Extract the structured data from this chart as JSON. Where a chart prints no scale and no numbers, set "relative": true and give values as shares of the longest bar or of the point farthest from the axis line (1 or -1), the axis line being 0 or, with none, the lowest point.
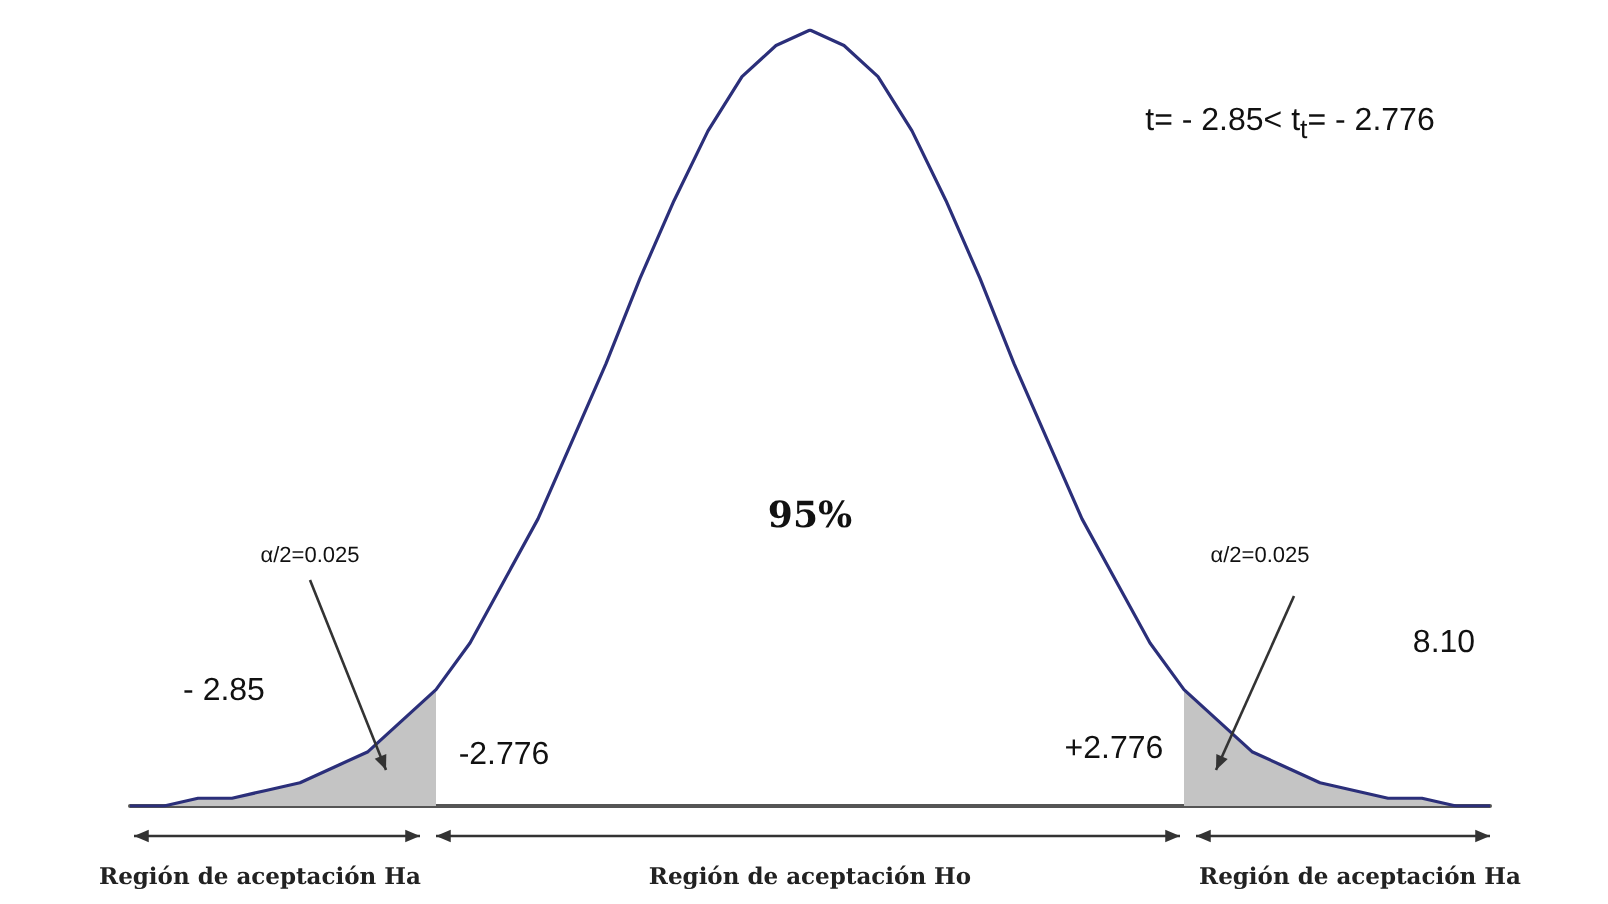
{
  "chart_data": {
    "type": "line",
    "relative": true,
    "grid": false,
    "marker": "none",
    "categories": [
      null,
      null,
      null,
      null,
      null,
      null,
      null,
      null,
      null,
      null,
      null,
      null,
      null,
      null,
      null,
      null,
      null,
      null,
      null,
      null,
      null,
      null,
      null,
      null,
      null,
      null,
      null,
      null,
      null,
      null,
      null,
      null,
      null,
      null,
      null,
      null,
      null,
      null,
      null,
      null,
      null
    ],
    "series": [
      {
        "color": "#2b2f7a",
        "values": [
          0,
          0,
          0.01,
          0.01,
          0.02,
          0.03,
          0.05,
          0.07,
          0.11,
          0.15,
          0.21,
          0.29,
          0.37,
          0.47,
          0.57,
          0.68,
          0.78,
          0.87,
          0.94,
          0.98,
          1,
          0.98,
          0.94,
          0.87,
          0.78,
          0.68,
          0.57,
          0.47,
          0.37,
          0.29,
          0.21,
          0.15,
          0.11,
          0.07,
          0.05,
          0.03,
          0.02,
          0.01,
          0.01,
          0,
          0
        ]
      },
      {
        "type": "area",
        "color": "#c4c4c4",
        "values": [
          0,
          0,
          0.01,
          0.01,
          0.02,
          0.03,
          0.05,
          0.07,
          0.11,
          0.15,
          null,
          null,
          null,
          null,
          null,
          null,
          null,
          null,
          null,
          null,
          null,
          null,
          null,
          null,
          null,
          null,
          null,
          null,
          null,
          null,
          null,
          null,
          null,
          null,
          null,
          null,
          null,
          null,
          null,
          null,
          null
        ]
      },
      {
        "type": "area",
        "color": "#c4c4c4",
        "values": [
          null,
          null,
          null,
          null,
          null,
          null,
          null,
          null,
          null,
          null,
          null,
          null,
          null,
          null,
          null,
          null,
          null,
          null,
          null,
          null,
          null,
          null,
          null,
          null,
          null,
          null,
          null,
          null,
          null,
          null,
          null,
          0.15,
          0.11,
          0.07,
          0.05,
          0.03,
          0.02,
          0.01,
          0.01,
          0,
          0
        ]
      }
    ],
    "annotations": [
      "t= - 2.85< t$_{t}$= - 2.776",
      "95%",
      "α/2=0.025",
      "α/2=0.025",
      "- 2.85",
      "-2.776",
      "+2.776",
      "8.10",
      "Región de aceptación Ha",
      "Región de aceptación Ho",
      "Región de aceptación Ha"
    ]
  }
}
